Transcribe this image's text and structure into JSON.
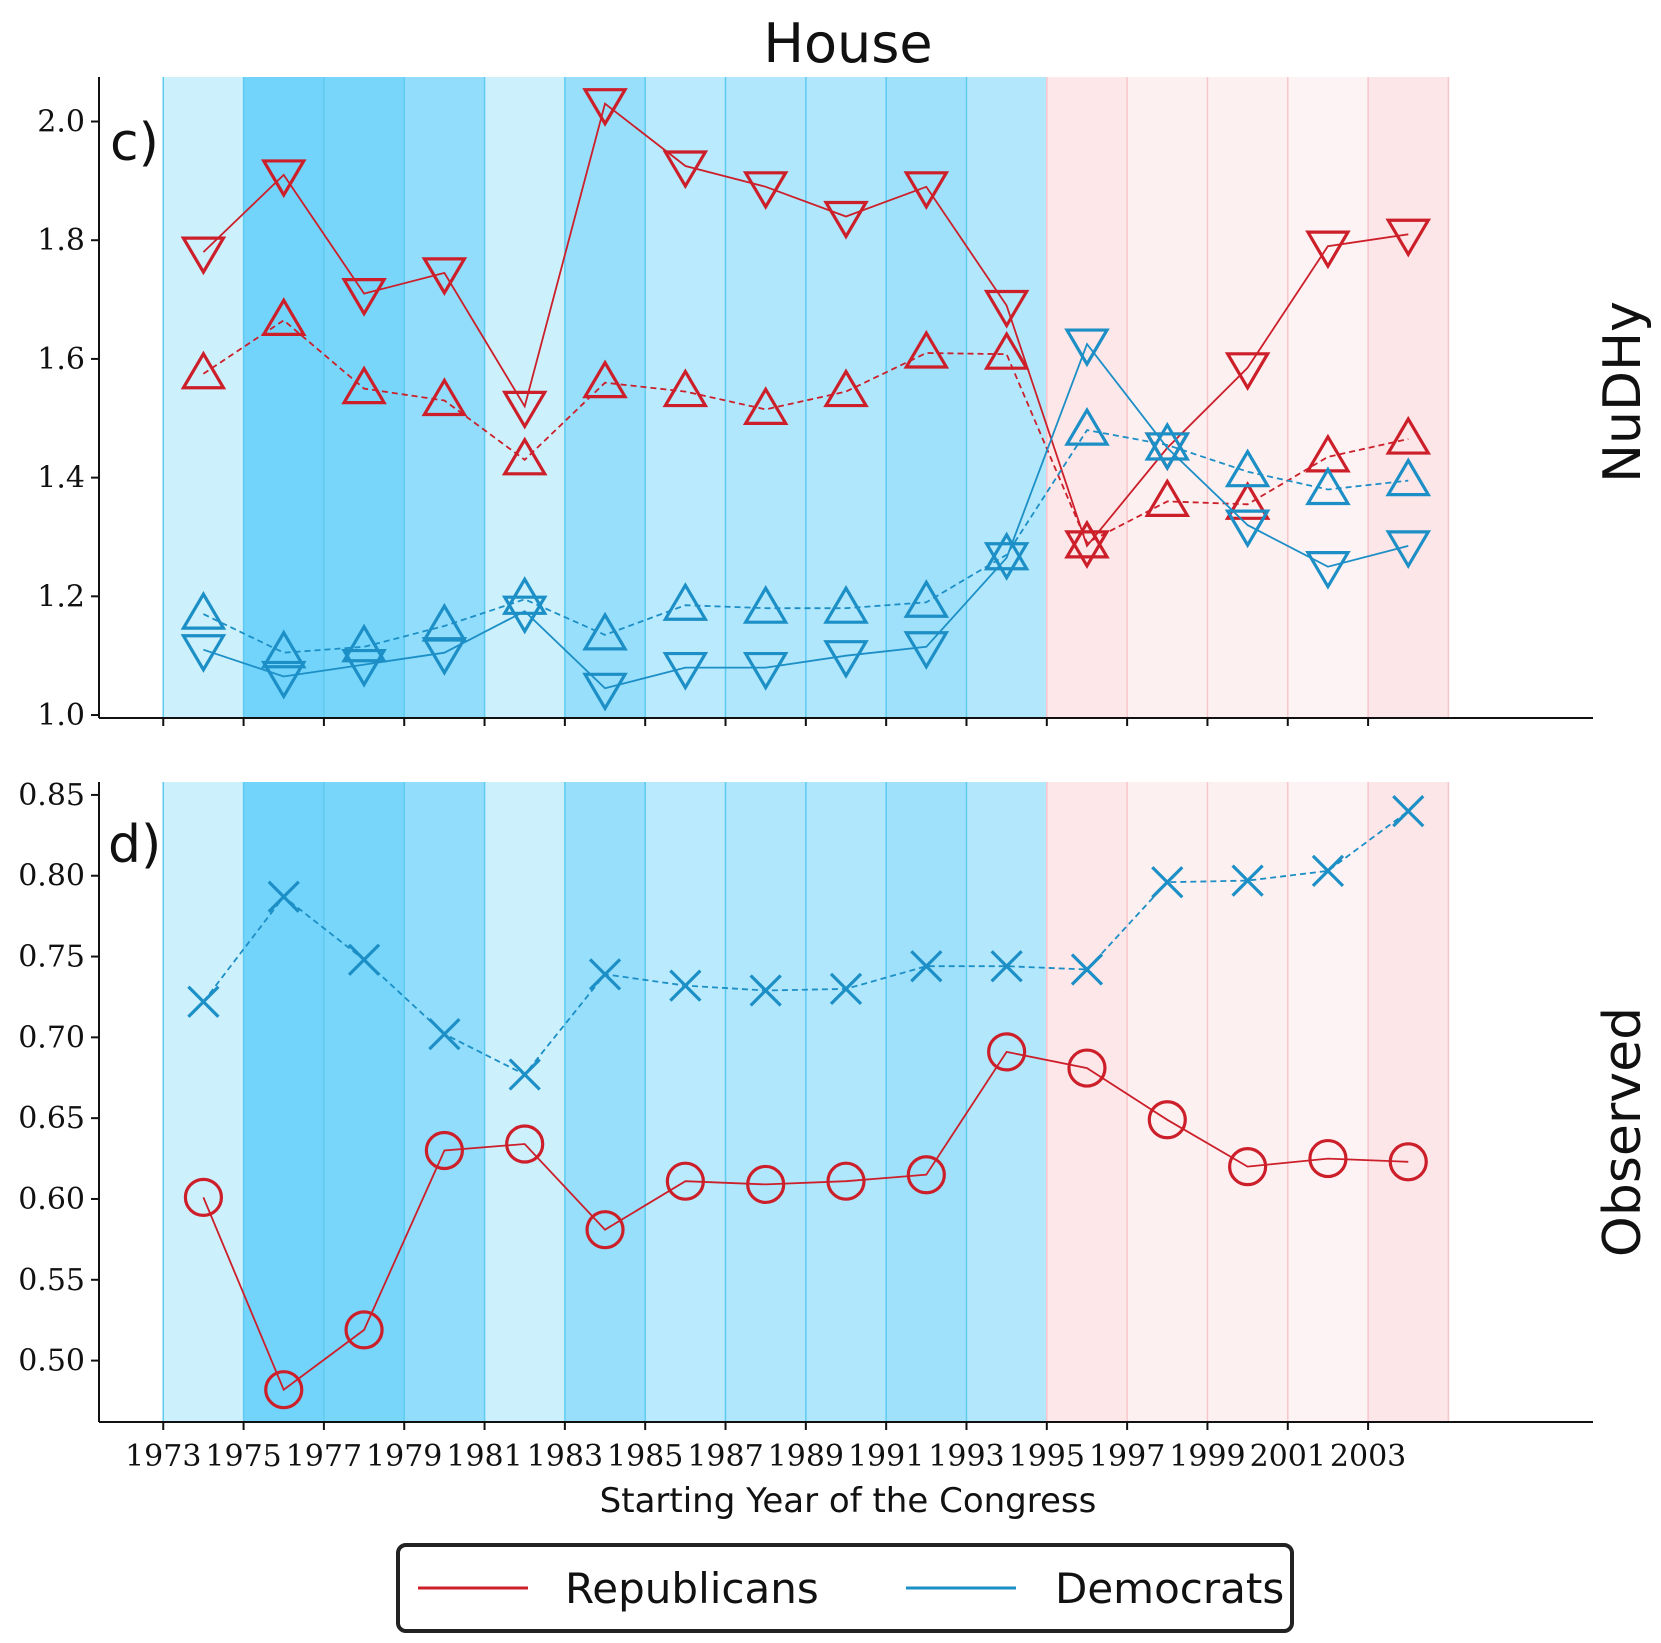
{
  "chart_data": {
    "type": "line",
    "title": "House",
    "xlabel": "Starting Year of the Congress",
    "x": [
      1974,
      1976,
      1978,
      1980,
      1982,
      1984,
      1986,
      1988,
      1990,
      1992,
      1994,
      1996,
      1998,
      2000,
      2002,
      2004
    ],
    "xticks": [
      1973,
      1975,
      1977,
      1979,
      1981,
      1983,
      1985,
      1987,
      1989,
      1991,
      1993,
      1995,
      1997,
      1999,
      2001,
      2003
    ],
    "xtick_labels": [
      "1973",
      "1975",
      "1977",
      "1979",
      "1981",
      "1983",
      "1985",
      "1987",
      "1989",
      "1991",
      "1993",
      "1995",
      "1997",
      "1999",
      "2001",
      "2003"
    ],
    "xlim": [
      1971.4,
      2008.6
    ],
    "colors": {
      "republicans": "#cc1f2a",
      "democrats": "#1c8fc6"
    },
    "bands": [
      {
        "start": 1973,
        "end": 1975,
        "party": "D",
        "color": "#cdf0fd"
      },
      {
        "start": 1975,
        "end": 1977,
        "party": "D",
        "color": "#73d4fb"
      },
      {
        "start": 1977,
        "end": 1979,
        "party": "D",
        "color": "#78d6fb"
      },
      {
        "start": 1979,
        "end": 1981,
        "party": "D",
        "color": "#92ddfb"
      },
      {
        "start": 1981,
        "end": 1983,
        "party": "D",
        "color": "#cdf0fd"
      },
      {
        "start": 1983,
        "end": 1985,
        "party": "D",
        "color": "#98dffb"
      },
      {
        "start": 1985,
        "end": 1987,
        "party": "D",
        "color": "#baeafd"
      },
      {
        "start": 1987,
        "end": 1989,
        "party": "D",
        "color": "#b1e7fc"
      },
      {
        "start": 1989,
        "end": 1991,
        "party": "D",
        "color": "#b1e7fc"
      },
      {
        "start": 1991,
        "end": 1993,
        "party": "D",
        "color": "#9fe1fb"
      },
      {
        "start": 1993,
        "end": 1995,
        "party": "D",
        "color": "#b3e8fc"
      },
      {
        "start": 1995,
        "end": 1997,
        "party": "R",
        "color": "#fde7e9"
      },
      {
        "start": 1997,
        "end": 1999,
        "party": "R",
        "color": "#fdf0f1"
      },
      {
        "start": 1999,
        "end": 2001,
        "party": "R",
        "color": "#fdf0f1"
      },
      {
        "start": 2001,
        "end": 2003,
        "party": "R",
        "color": "#fdf3f4"
      },
      {
        "start": 2003,
        "end": 2005,
        "party": "R",
        "color": "#fde6e8"
      }
    ],
    "panels": [
      {
        "tag": "c)",
        "row_label": "NuDHy",
        "ylim": [
          0.995,
          2.075
        ],
        "yticks": [
          1.0,
          1.2,
          1.4,
          1.6,
          1.8,
          2.0
        ],
        "ytick_labels": [
          "1.0",
          "1.2",
          "1.4",
          "1.6",
          "1.8",
          "2.0"
        ],
        "series": [
          {
            "name": "Republicans (down triangle)",
            "party": "republicans",
            "marker": "triangle-down",
            "line": "solid",
            "values": [
              1.78,
              1.91,
              1.71,
              1.745,
              1.52,
              2.03,
              1.925,
              1.89,
              1.84,
              1.89,
              1.69,
              1.285,
              1.45,
              1.585,
              1.79,
              1.81
            ]
          },
          {
            "name": "Republicans (up triangle)",
            "party": "republicans",
            "marker": "triangle-up",
            "line": "dashed",
            "values": [
              1.575,
              1.665,
              1.55,
              1.53,
              1.43,
              1.56,
              1.545,
              1.515,
              1.545,
              1.61,
              1.608,
              1.29,
              1.36,
              1.355,
              1.435,
              1.465
            ]
          },
          {
            "name": "Democrats (down triangle)",
            "party": "democrats",
            "marker": "triangle-down",
            "line": "solid",
            "values": [
              1.11,
              1.065,
              1.085,
              1.105,
              1.175,
              1.045,
              1.08,
              1.08,
              1.1,
              1.115,
              1.265,
              1.625,
              1.45,
              1.32,
              1.25,
              1.285
            ]
          },
          {
            "name": "Democrats (up triangle)",
            "party": "democrats",
            "marker": "triangle-up",
            "line": "dashed",
            "values": [
              1.17,
              1.105,
              1.115,
              1.15,
              1.195,
              1.135,
              1.185,
              1.18,
              1.18,
              1.19,
              1.27,
              1.48,
              1.455,
              1.41,
              1.38,
              1.395
            ]
          }
        ]
      },
      {
        "tag": "d)",
        "row_label": "Observed",
        "ylim": [
          0.462,
          0.858
        ],
        "yticks": [
          0.5,
          0.55,
          0.6,
          0.65,
          0.7,
          0.75,
          0.8,
          0.85
        ],
        "ytick_labels": [
          "0.50",
          "0.55",
          "0.60",
          "0.65",
          "0.70",
          "0.75",
          "0.80",
          "0.85"
        ],
        "series": [
          {
            "name": "Republicans (circle)",
            "party": "republicans",
            "marker": "circle",
            "line": "solid",
            "values": [
              0.601,
              0.482,
              0.519,
              0.63,
              0.634,
              0.581,
              0.611,
              0.609,
              0.611,
              0.615,
              0.691,
              0.681,
              0.649,
              0.62,
              0.625,
              0.623
            ]
          },
          {
            "name": "Democrats (cross)",
            "party": "democrats",
            "marker": "x",
            "line": "dashed",
            "values": [
              0.722,
              0.787,
              0.748,
              0.702,
              0.677,
              0.739,
              0.732,
              0.729,
              0.73,
              0.744,
              0.744,
              0.742,
              0.796,
              0.797,
              0.803,
              0.84
            ]
          }
        ]
      }
    ],
    "legend": {
      "position": "bottom-center",
      "entries": [
        {
          "label": "Republicans",
          "party": "republicans"
        },
        {
          "label": "Democrats",
          "party": "democrats"
        }
      ]
    }
  }
}
